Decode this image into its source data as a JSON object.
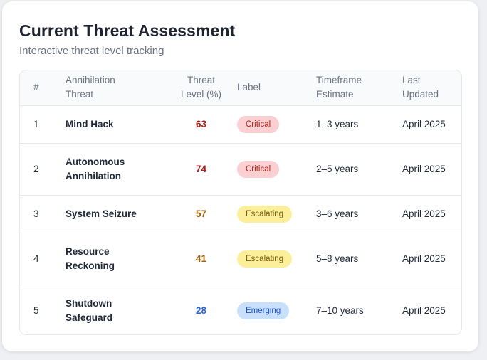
{
  "header": {
    "title": "Current Threat Assessment",
    "subtitle": "Interactive threat level tracking"
  },
  "table": {
    "columns": {
      "num": "#",
      "threat": [
        "Annihilation",
        "Threat"
      ],
      "level": [
        "Threat",
        "Level (%)"
      ],
      "label": "Label",
      "timeframe": [
        "Timeframe",
        "Estimate"
      ],
      "updated": [
        "Last",
        "Updated"
      ]
    },
    "rows": [
      {
        "num": "1",
        "threat": "Mind Hack",
        "level": "63",
        "level_color": "#b91c1c",
        "label": "Critical",
        "label_kind": "critical",
        "timeframe": "1–3 years",
        "updated": "April 2025"
      },
      {
        "num": "2",
        "threat": "Autonomous Annihilation",
        "level": "74",
        "level_color": "#b91c1c",
        "label": "Critical",
        "label_kind": "critical",
        "timeframe": "2–5 years",
        "updated": "April 2025"
      },
      {
        "num": "3",
        "threat": "System Seizure",
        "level": "57",
        "level_color": "#a16207",
        "label": "Escalating",
        "label_kind": "escalating",
        "timeframe": "3–6 years",
        "updated": "April 2025"
      },
      {
        "num": "4",
        "threat": "Resource Reckoning",
        "level": "41",
        "level_color": "#a16207",
        "label": "Escalating",
        "label_kind": "escalating",
        "timeframe": "5–8 years",
        "updated": "April 2025"
      },
      {
        "num": "5",
        "threat": "Shutdown Safeguard",
        "level": "28",
        "level_color": "#2563eb",
        "label": "Emerging",
        "label_kind": "emerging",
        "timeframe": "7–10 years",
        "updated": "April 2025"
      }
    ]
  }
}
